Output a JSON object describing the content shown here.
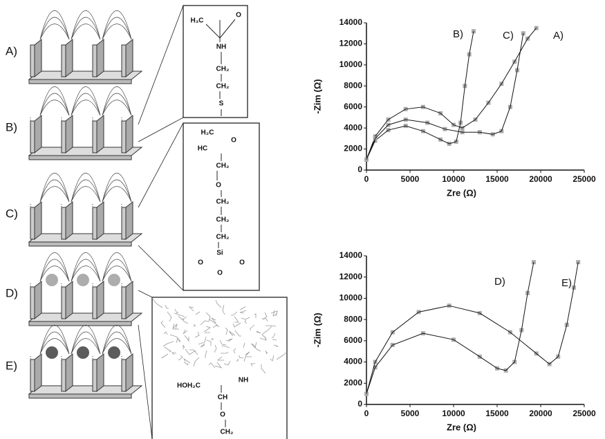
{
  "diagram": {
    "labels": [
      "A)",
      "B)",
      "C)",
      "D)",
      "E)"
    ],
    "structures": [
      {
        "labels": [
          "H₃C",
          "O",
          "NH",
          "CH₂",
          "CH₂",
          "S"
        ]
      },
      {
        "labels": [
          "H₂C",
          "O",
          "HC",
          "CH₂",
          "O",
          "CH₂",
          "CH₂",
          "CH₂",
          "Si",
          "O",
          "O",
          "O"
        ]
      },
      {
        "labels": [
          "HOH₂C",
          "NH",
          "CH",
          "O",
          "CH₂"
        ]
      }
    ]
  },
  "chart_data": [
    {
      "type": "line",
      "xlabel": "Zre (Ω)",
      "ylabel": "-Zim (Ω)",
      "xlim": [
        0,
        25000
      ],
      "ylim": [
        0,
        14000
      ],
      "xticks": [
        0,
        5000,
        10000,
        15000,
        20000,
        25000
      ],
      "yticks": [
        0,
        2000,
        4000,
        6000,
        8000,
        10000,
        12000,
        14000
      ],
      "marker_color": "#aaaaaa",
      "series": [
        {
          "name": "A)",
          "color": "#111111",
          "x": [
            0,
            1000,
            2500,
            4500,
            6500,
            8500,
            10000,
            11000,
            12500,
            14000,
            15500,
            17000,
            18500,
            19500
          ],
          "values": [
            1000,
            3200,
            4800,
            5800,
            6000,
            5400,
            4300,
            4000,
            4800,
            6400,
            8200,
            10300,
            12500,
            13500
          ]
        },
        {
          "name": "B)",
          "color": "#111111",
          "x": [
            0,
            1000,
            2500,
            4500,
            6500,
            8500,
            9500,
            10300,
            10800,
            11300,
            11800,
            12300
          ],
          "values": [
            1000,
            2800,
            3800,
            4200,
            3700,
            2900,
            2500,
            2700,
            4500,
            8000,
            11000,
            13200
          ]
        },
        {
          "name": "C)",
          "color": "#111111",
          "x": [
            0,
            1000,
            2500,
            4500,
            7000,
            9000,
            11000,
            13000,
            14500,
            15500,
            16500,
            17300,
            18000
          ],
          "values": [
            1000,
            3000,
            4300,
            4800,
            4500,
            3900,
            3600,
            3600,
            3400,
            3700,
            6000,
            9500,
            13000
          ]
        }
      ]
    },
    {
      "type": "line",
      "xlabel": "Zre (Ω)",
      "ylabel": "-Zim (Ω)",
      "xlim": [
        0,
        25000
      ],
      "ylim": [
        0,
        14000
      ],
      "xticks": [
        0,
        5000,
        10000,
        15000,
        20000,
        25000
      ],
      "yticks": [
        0,
        2000,
        4000,
        6000,
        8000,
        10000,
        12000,
        14000
      ],
      "marker_color": "#aaaaaa",
      "series": [
        {
          "name": "D)",
          "color": "#111111",
          "x": [
            0,
            1000,
            3000,
            6500,
            10000,
            13000,
            15000,
            16000,
            17000,
            17800,
            18500,
            19200
          ],
          "values": [
            1000,
            3500,
            5600,
            6700,
            6100,
            4500,
            3400,
            3200,
            4000,
            7000,
            10500,
            13400
          ]
        },
        {
          "name": "E)",
          "color": "#111111",
          "x": [
            0,
            1000,
            3000,
            6000,
            9500,
            13000,
            16500,
            19500,
            21000,
            22000,
            23000,
            23800,
            24300
          ],
          "values": [
            1000,
            4000,
            6800,
            8700,
            9300,
            8600,
            6800,
            4800,
            3800,
            4500,
            7500,
            11000,
            13400
          ]
        }
      ]
    }
  ]
}
